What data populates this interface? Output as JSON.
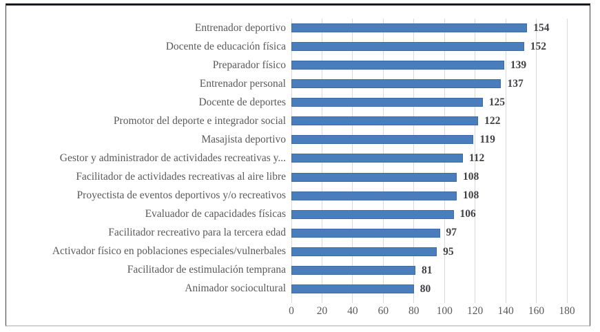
{
  "chart_data": {
    "type": "bar",
    "orientation": "horizontal",
    "title": "",
    "xlabel": "",
    "ylabel": "",
    "categories": [
      "Entrenador deportivo",
      "Docente de educación física",
      "Preparador físico",
      "Entrenador personal",
      "Docente de deportes",
      "Promotor del deporte e integrador social",
      "Masajista deportivo",
      "Gestor y administrador de actividades recreativas y...",
      "Facilitador de actividades recreativas al aire libre",
      "Proyectista de eventos deportivos y/o recreativos",
      "Evaluador de capacidades físicas",
      "Facilitador recreativo para la tercera edad",
      "Activador físico en poblaciones especiales/vulnerbales",
      "Facilitador de estimulación temprana",
      "Animador sociocultural"
    ],
    "values": [
      154,
      152,
      139,
      137,
      125,
      122,
      119,
      112,
      108,
      108,
      106,
      97,
      95,
      81,
      80
    ],
    "data_labels": [
      "154",
      "152",
      "139",
      "137",
      "125",
      "122",
      "119",
      "112",
      "108",
      "108",
      "106",
      "97",
      "95",
      "81",
      "80"
    ],
    "xlim": [
      0,
      180
    ],
    "xticks": [
      0,
      20,
      40,
      60,
      80,
      100,
      120,
      140,
      160,
      180
    ],
    "xtick_labels": [
      "0",
      "20",
      "40",
      "60",
      "80",
      "100",
      "120",
      "140",
      "160",
      "180"
    ],
    "grid": true,
    "legend": "none",
    "colors": {
      "bar_fill": "#4a7dbb",
      "bar_border": "#3c6ba5",
      "gridline": "#d9d9d9",
      "category_label": "#595959",
      "tick_label": "#595959",
      "value_label": "#3f3f44",
      "frame_top_border": "#17171f",
      "frame_side_border": "#3a3a42",
      "frame_bottom_border": "#d2d2d2",
      "background": "#ffffff"
    }
  }
}
